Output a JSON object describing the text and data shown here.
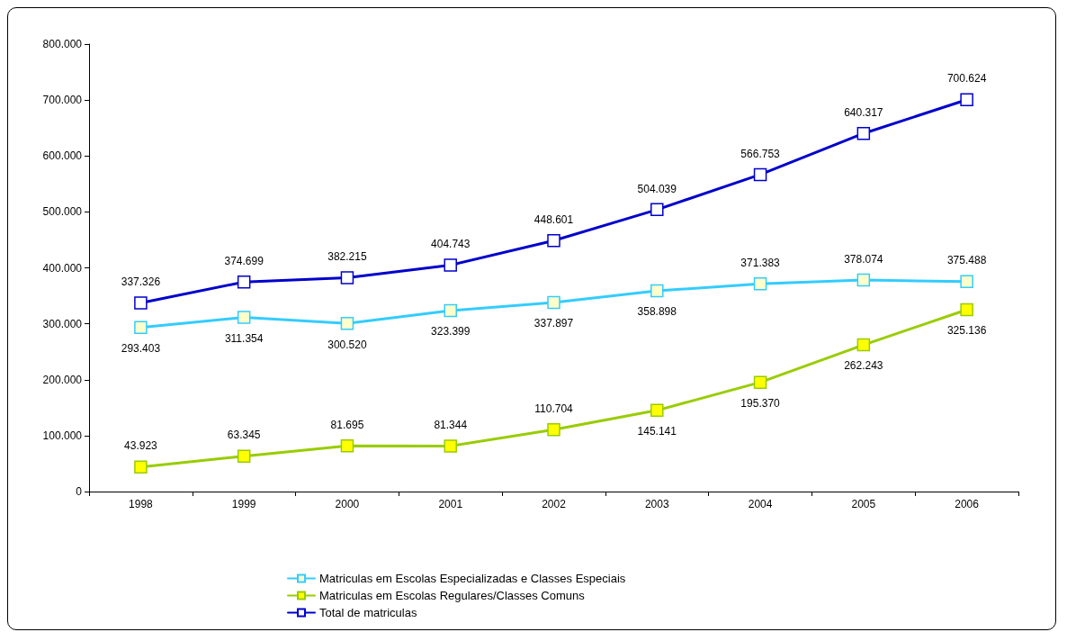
{
  "chart_data": {
    "type": "line",
    "categories": [
      "1998",
      "1999",
      "2000",
      "2001",
      "2002",
      "2003",
      "2004",
      "2005",
      "2006"
    ],
    "series": [
      {
        "name": "Matriculas em Escolas Especializadas e Classes Especiais",
        "color": "#33ccff",
        "values": [
          293403,
          311354,
          300520,
          323399,
          337897,
          358898,
          371383,
          378074,
          375488
        ],
        "value_labels": [
          "293.403",
          "311.354",
          "300.520",
          "323.399",
          "337.897",
          "358.898",
          "371.383",
          "378.074",
          "375.488"
        ]
      },
      {
        "name": "Matriculas em Escolas Regulares/Classes Comuns",
        "color": "#99cc00",
        "values": [
          43923,
          63345,
          81695,
          81344,
          110704,
          145141,
          195370,
          262243,
          325136
        ],
        "value_labels": [
          "43.923",
          "63.345",
          "81.695",
          "81.344",
          "110.704",
          "145.141",
          "195.370",
          "262.243",
          "325.136"
        ]
      },
      {
        "name": "Total de matriculas",
        "color": "#0000cc",
        "values": [
          337326,
          374699,
          382215,
          404743,
          448601,
          504039,
          566753,
          640317,
          700624
        ],
        "value_labels": [
          "337.326",
          "374.699",
          "382.215",
          "404.743",
          "448.601",
          "504.039",
          "566.753",
          "640.317",
          "700.624"
        ]
      }
    ],
    "ylim": [
      0,
      800000
    ],
    "yticks": [
      {
        "value": 0,
        "label": "0"
      },
      {
        "value": 100000,
        "label": "100.000"
      },
      {
        "value": 200000,
        "label": "200.000"
      },
      {
        "value": 300000,
        "label": "300.000"
      },
      {
        "value": 400000,
        "label": "400.000"
      },
      {
        "value": 500000,
        "label": "500.000"
      },
      {
        "value": 600000,
        "label": "600.000"
      },
      {
        "value": 700000,
        "label": "700.000"
      },
      {
        "value": 800000,
        "label": "800.000"
      }
    ],
    "grid": false,
    "legend": "bottom",
    "marker": "square",
    "line_style": "solid"
  }
}
